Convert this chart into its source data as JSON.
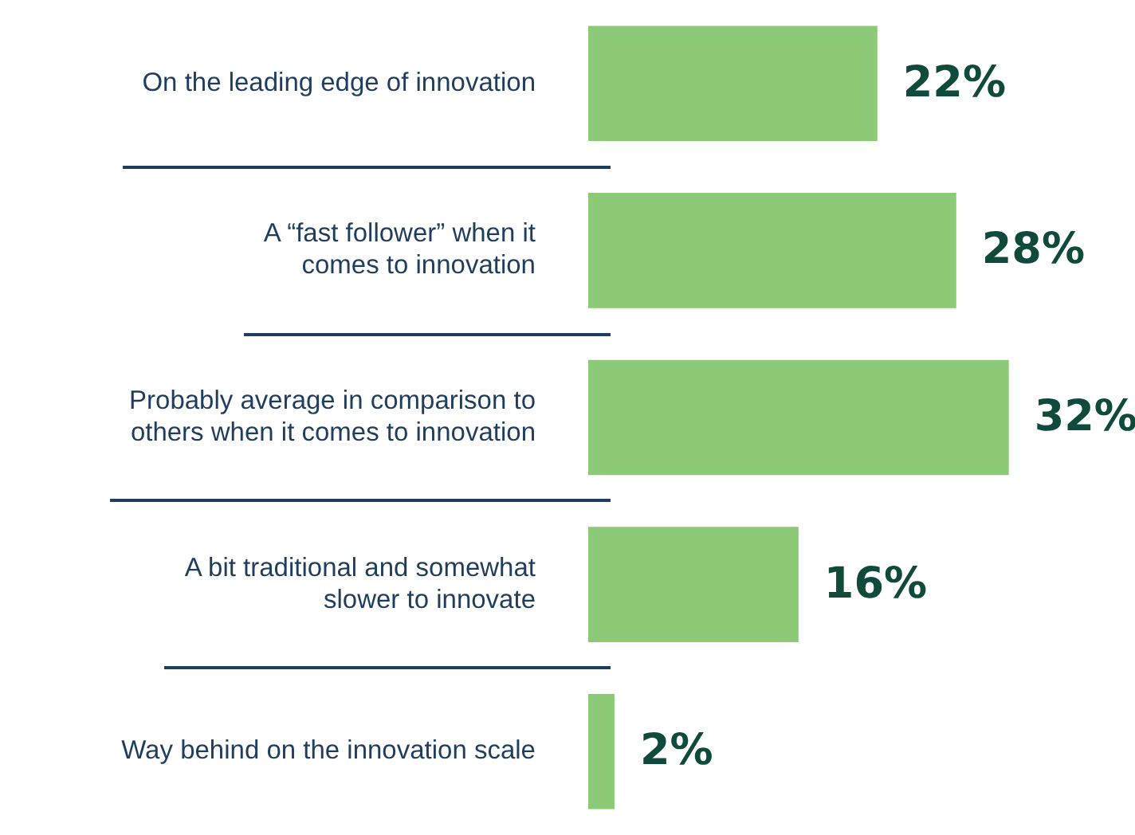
{
  "chart_data": {
    "type": "bar",
    "orientation": "horizontal",
    "categories": [
      "On the leading edge of innovation",
      "A “fast follower” when it\ncomes to innovation",
      "Probably average in comparison to\nothers when it comes to innovation",
      "A bit traditional and somewhat\nslower to innovate",
      "Way behind on the innovation scale"
    ],
    "values": [
      22,
      28,
      32,
      16,
      2
    ],
    "value_labels": [
      "22%",
      "28%",
      "32%",
      "16%",
      "2%"
    ],
    "color": "#8cca78"
  }
}
